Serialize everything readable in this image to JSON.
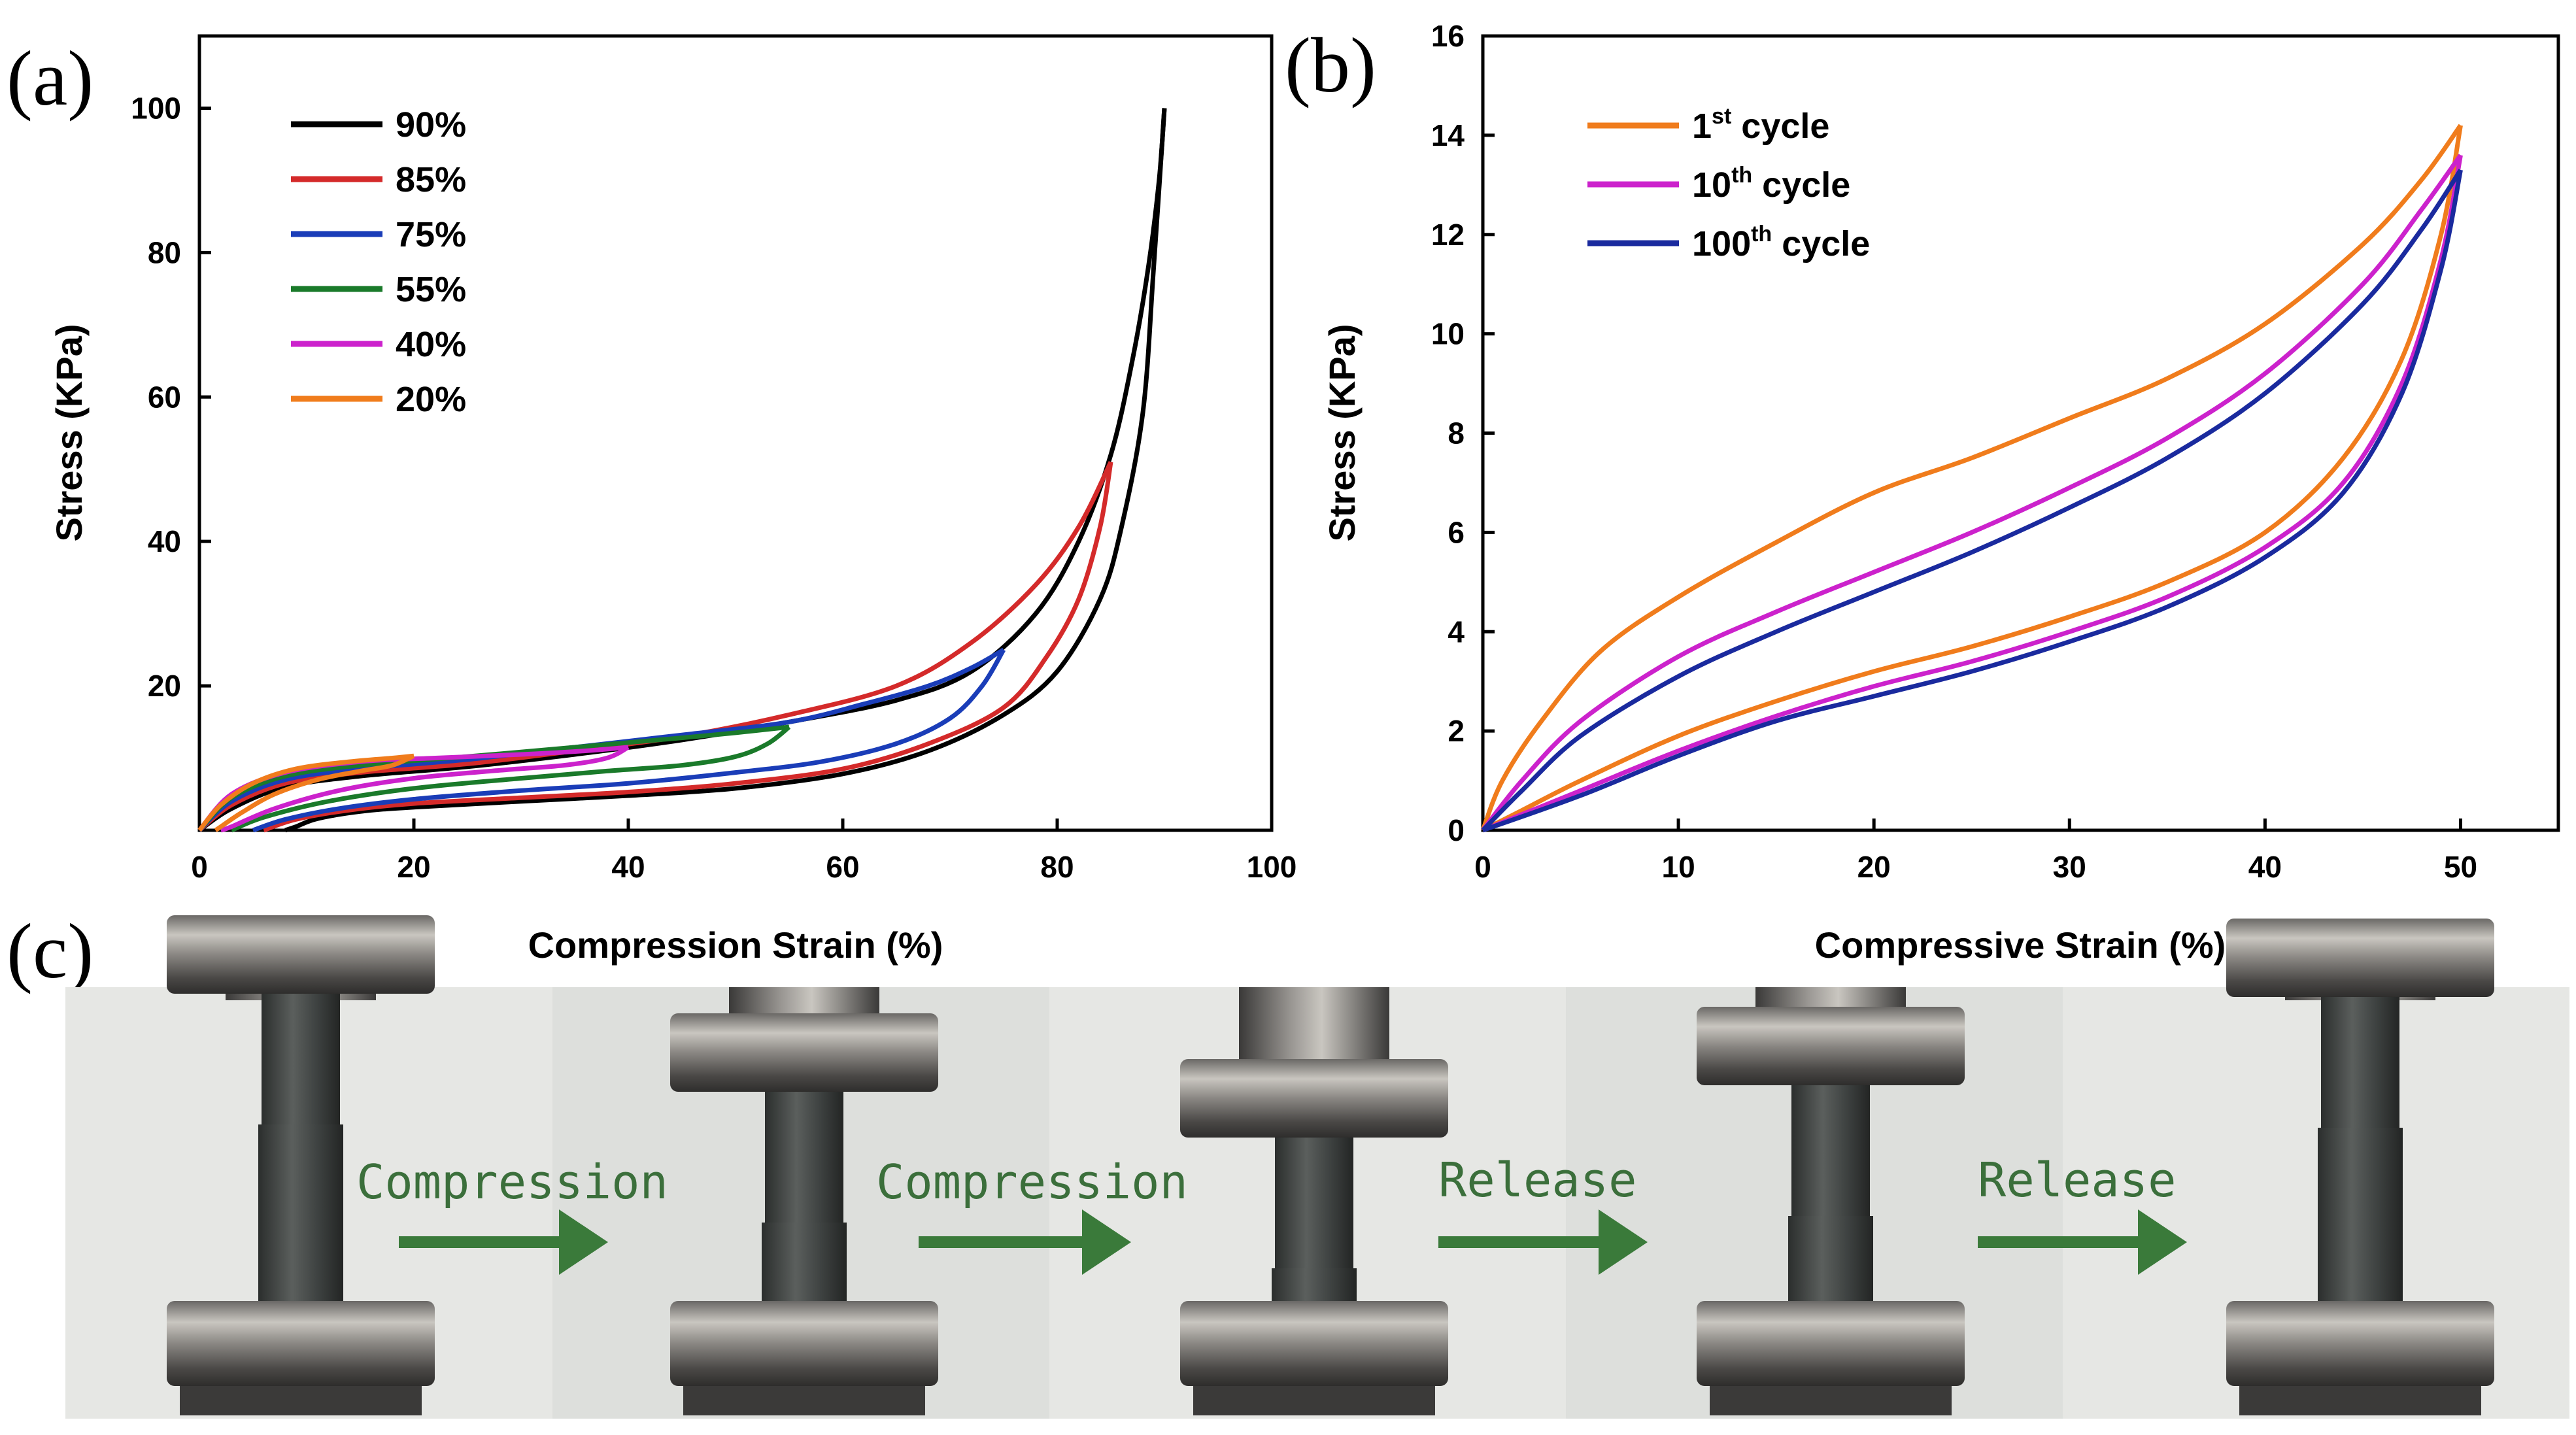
{
  "panel_labels": {
    "a": "(a)",
    "b": "(b)",
    "c": "(c)"
  },
  "chart_data": [
    {
      "id": "a",
      "type": "line",
      "title": "",
      "xlabel": "Compression Strain (%)",
      "ylabel": "Stress (KPa)",
      "xlim": [
        0,
        100
      ],
      "ylim": [
        0,
        110
      ],
      "xticks": [
        0,
        20,
        40,
        60,
        80,
        100
      ],
      "yticks": [
        20,
        40,
        60,
        80,
        100
      ],
      "legend_position": "top-left",
      "series": [
        {
          "name": "90%",
          "color": "#000000",
          "loading": [
            [
              0,
              0
            ],
            [
              3,
              3
            ],
            [
              8,
              6
            ],
            [
              15,
              7.5
            ],
            [
              25,
              8.8
            ],
            [
              35,
              10.5
            ],
            [
              45,
              12.5
            ],
            [
              55,
              15
            ],
            [
              65,
              18
            ],
            [
              72,
              22
            ],
            [
              78,
              30
            ],
            [
              82,
              40
            ],
            [
              85,
              52
            ],
            [
              87,
              65
            ],
            [
              88.5,
              78
            ],
            [
              89.5,
              90
            ],
            [
              90,
              100
            ]
          ],
          "unloading": [
            [
              90,
              100
            ],
            [
              89,
              78
            ],
            [
              88,
              58
            ],
            [
              86,
              42
            ],
            [
              84,
              32
            ],
            [
              80,
              22
            ],
            [
              75,
              16
            ],
            [
              68,
              11
            ],
            [
              60,
              7.8
            ],
            [
              50,
              5.8
            ],
            [
              40,
              4.8
            ],
            [
              30,
              4
            ],
            [
              20,
              3.2
            ],
            [
              15,
              2.6
            ],
            [
              11,
              1.6
            ],
            [
              9,
              0.5
            ],
            [
              8,
              0
            ]
          ]
        },
        {
          "name": "85%",
          "color": "#d42a2a",
          "loading": [
            [
              0,
              0
            ],
            [
              3,
              3.5
            ],
            [
              8,
              6.5
            ],
            [
              15,
              8
            ],
            [
              25,
              9.2
            ],
            [
              35,
              11
            ],
            [
              45,
              13
            ],
            [
              55,
              16
            ],
            [
              65,
              20
            ],
            [
              72,
              26
            ],
            [
              78,
              34
            ],
            [
              82,
              42
            ],
            [
              85,
              51
            ]
          ],
          "unloading": [
            [
              85,
              51
            ],
            [
              84,
              42
            ],
            [
              82,
              32
            ],
            [
              79,
              24
            ],
            [
              75,
              17
            ],
            [
              68,
              12
            ],
            [
              60,
              8.5
            ],
            [
              50,
              6.5
            ],
            [
              40,
              5.3
            ],
            [
              30,
              4.5
            ],
            [
              20,
              3.7
            ],
            [
              14,
              2.8
            ],
            [
              9,
              1.5
            ],
            [
              6,
              0
            ]
          ]
        },
        {
          "name": "75%",
          "color": "#1a3db8",
          "loading": [
            [
              0,
              0
            ],
            [
              3,
              4
            ],
            [
              8,
              7
            ],
            [
              15,
              8.5
            ],
            [
              25,
              9.8
            ],
            [
              35,
              11.5
            ],
            [
              45,
              13.2
            ],
            [
              55,
              15
            ],
            [
              62,
              17.5
            ],
            [
              68,
              20
            ],
            [
              72,
              22.5
            ],
            [
              75,
              25
            ]
          ],
          "unloading": [
            [
              75,
              25
            ],
            [
              73,
              20
            ],
            [
              70,
              15.5
            ],
            [
              65,
              12
            ],
            [
              58,
              9.5
            ],
            [
              50,
              8
            ],
            [
              40,
              6.5
            ],
            [
              30,
              5.5
            ],
            [
              20,
              4.3
            ],
            [
              13,
              3
            ],
            [
              8,
              1.5
            ],
            [
              5,
              0
            ]
          ]
        },
        {
          "name": "55%",
          "color": "#1a7a2a",
          "loading": [
            [
              0,
              0
            ],
            [
              3,
              4.5
            ],
            [
              8,
              7.5
            ],
            [
              15,
              9
            ],
            [
              25,
              10.2
            ],
            [
              35,
              11.5
            ],
            [
              45,
              12.8
            ],
            [
              50,
              13.5
            ],
            [
              55,
              14.3
            ]
          ],
          "unloading": [
            [
              55,
              14.3
            ],
            [
              53,
              12
            ],
            [
              50,
              10.2
            ],
            [
              45,
              9
            ],
            [
              38,
              8.2
            ],
            [
              30,
              7.2
            ],
            [
              20,
              5.8
            ],
            [
              12,
              4
            ],
            [
              6,
              1.8
            ],
            [
              3,
              0
            ]
          ]
        },
        {
          "name": "40%",
          "color": "#cc22cc",
          "loading": [
            [
              0,
              0
            ],
            [
              3,
              5
            ],
            [
              8,
              8
            ],
            [
              15,
              9.5
            ],
            [
              22,
              10
            ],
            [
              30,
              10.5
            ],
            [
              36,
              11
            ],
            [
              40,
              11.5
            ]
          ],
          "unloading": [
            [
              40,
              11.5
            ],
            [
              38,
              10
            ],
            [
              34,
              9
            ],
            [
              28,
              8.3
            ],
            [
              20,
              7.2
            ],
            [
              13,
              5.5
            ],
            [
              7,
              3
            ],
            [
              3,
              0.5
            ],
            [
              2,
              0
            ]
          ]
        },
        {
          "name": "20%",
          "color": "#f07c1c",
          "loading": [
            [
              0,
              0
            ],
            [
              2,
              3.5
            ],
            [
              5,
              6.5
            ],
            [
              9,
              8.5
            ],
            [
              14,
              9.5
            ],
            [
              18,
              10
            ],
            [
              20,
              10.3
            ]
          ],
          "unloading": [
            [
              20,
              10.3
            ],
            [
              18,
              9
            ],
            [
              15,
              8.2
            ],
            [
              11,
              7
            ],
            [
              7,
              5
            ],
            [
              4,
              2.5
            ],
            [
              2,
              0.5
            ],
            [
              1.5,
              0
            ]
          ]
        }
      ]
    },
    {
      "id": "b",
      "type": "line",
      "title": "",
      "xlabel": "Compressive Strain (%)",
      "ylabel": "Stress (KPa)",
      "xlim": [
        0,
        55
      ],
      "ylim": [
        0,
        16
      ],
      "xticks": [
        0,
        10,
        20,
        30,
        40,
        50
      ],
      "yticks": [
        0,
        2,
        4,
        6,
        8,
        10,
        12,
        14,
        16
      ],
      "legend_position": "top-left",
      "series": [
        {
          "name": "1",
          "sup": "st",
          "suffix": " cycle",
          "color": "#f07c1c",
          "loading": [
            [
              0,
              0
            ],
            [
              1,
              1
            ],
            [
              3,
              2.2
            ],
            [
              6,
              3.6
            ],
            [
              10,
              4.7
            ],
            [
              15,
              5.8
            ],
            [
              20,
              6.8
            ],
            [
              25,
              7.5
            ],
            [
              30,
              8.3
            ],
            [
              35,
              9.1
            ],
            [
              40,
              10.2
            ],
            [
              45,
              11.8
            ],
            [
              48,
              13.1
            ],
            [
              50,
              14.2
            ]
          ],
          "unloading": [
            [
              50,
              14.2
            ],
            [
              49,
              12
            ],
            [
              47,
              9.5
            ],
            [
              44,
              7.5
            ],
            [
              40,
              6
            ],
            [
              35,
              5
            ],
            [
              30,
              4.3
            ],
            [
              25,
              3.7
            ],
            [
              20,
              3.2
            ],
            [
              15,
              2.6
            ],
            [
              10,
              1.9
            ],
            [
              5,
              1
            ],
            [
              2,
              0.4
            ],
            [
              0,
              0
            ]
          ]
        },
        {
          "name": "10",
          "sup": "th",
          "suffix": " cycle",
          "color": "#cc22cc",
          "loading": [
            [
              0,
              0
            ],
            [
              2,
              1
            ],
            [
              5,
              2.2
            ],
            [
              10,
              3.5
            ],
            [
              15,
              4.4
            ],
            [
              20,
              5.2
            ],
            [
              25,
              6
            ],
            [
              30,
              6.9
            ],
            [
              35,
              7.9
            ],
            [
              40,
              9.2
            ],
            [
              45,
              11
            ],
            [
              48,
              12.5
            ],
            [
              50,
              13.6
            ]
          ],
          "unloading": [
            [
              50,
              13.6
            ],
            [
              49,
              11.5
            ],
            [
              47,
              9
            ],
            [
              44,
              7
            ],
            [
              40,
              5.7
            ],
            [
              35,
              4.7
            ],
            [
              30,
              4
            ],
            [
              25,
              3.4
            ],
            [
              20,
              2.9
            ],
            [
              15,
              2.3
            ],
            [
              10,
              1.6
            ],
            [
              5,
              0.8
            ],
            [
              0,
              0
            ]
          ]
        },
        {
          "name": "100",
          "sup": "th",
          "suffix": " cycle",
          "color": "#1a2a9e",
          "loading": [
            [
              0,
              0
            ],
            [
              2,
              0.8
            ],
            [
              5,
              1.9
            ],
            [
              10,
              3.1
            ],
            [
              15,
              4
            ],
            [
              20,
              4.8
            ],
            [
              25,
              5.6
            ],
            [
              30,
              6.5
            ],
            [
              35,
              7.5
            ],
            [
              40,
              8.8
            ],
            [
              45,
              10.6
            ],
            [
              48,
              12.1
            ],
            [
              50,
              13.3
            ]
          ],
          "unloading": [
            [
              50,
              13.3
            ],
            [
              49,
              11.3
            ],
            [
              47,
              8.8
            ],
            [
              44,
              6.8
            ],
            [
              40,
              5.5
            ],
            [
              35,
              4.5
            ],
            [
              30,
              3.8
            ],
            [
              25,
              3.2
            ],
            [
              20,
              2.7
            ],
            [
              15,
              2.2
            ],
            [
              10,
              1.5
            ],
            [
              5,
              0.7
            ],
            [
              0,
              0
            ]
          ]
        }
      ]
    }
  ],
  "photo_strip": {
    "transitions": [
      {
        "label": "Compression"
      },
      {
        "label": "Compression"
      },
      {
        "label": "Release"
      },
      {
        "label": "Release"
      }
    ],
    "arrow_color": "#3a7a3a"
  }
}
